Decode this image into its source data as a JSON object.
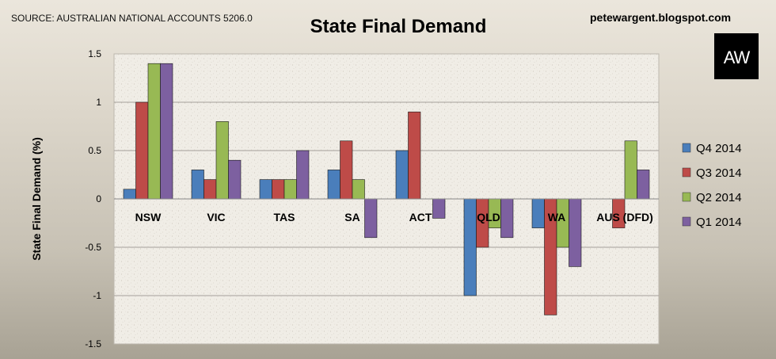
{
  "source": "SOURCE: AUSTRALIAN NATIONAL ACCOUNTS 5206.0",
  "blog": "petewargent.blogspot.com",
  "logo": {
    "text": "AW",
    "bg": "#000000",
    "fg": "#ffffff"
  },
  "chart_data": {
    "type": "bar",
    "title": "State Final Demand",
    "xlabel": "",
    "ylabel": "State Final Demand (%)",
    "ylim": [
      -1.5,
      1.5
    ],
    "yticks": [
      1.5,
      1,
      0.5,
      0,
      -0.5,
      -1,
      -1.5
    ],
    "grid": true,
    "legend_position": "right",
    "categories": [
      "NSW",
      "VIC",
      "TAS",
      "SA",
      "ACT",
      "QLD",
      "WA",
      "AUS (DFD)"
    ],
    "series": [
      {
        "name": "Q4 2014",
        "color": "#4a7ebb",
        "values": [
          0.1,
          0.3,
          0.2,
          0.3,
          0.5,
          -1.0,
          -0.3,
          0.0
        ]
      },
      {
        "name": "Q3 2014",
        "color": "#be4b48",
        "values": [
          1.0,
          0.2,
          0.2,
          0.6,
          0.9,
          -0.5,
          -1.2,
          -0.3
        ]
      },
      {
        "name": "Q2 2014",
        "color": "#98b954",
        "values": [
          1.4,
          0.8,
          0.2,
          0.2,
          0.0,
          -0.3,
          -0.5,
          0.6
        ]
      },
      {
        "name": "Q1 2014",
        "color": "#7d60a0",
        "values": [
          1.4,
          0.4,
          0.5,
          -0.4,
          -0.2,
          -0.4,
          -0.7,
          0.3
        ]
      }
    ]
  }
}
